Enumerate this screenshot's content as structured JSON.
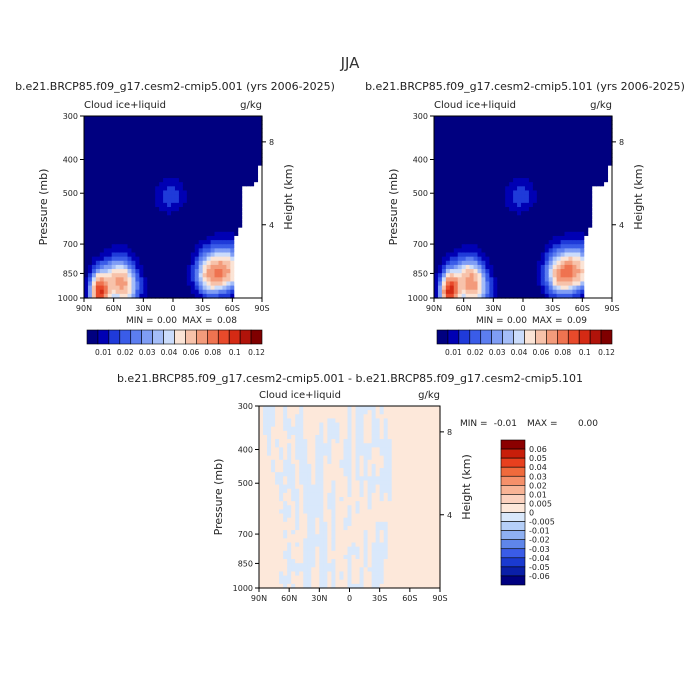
{
  "figure_title": "JJA",
  "colorbar_top": {
    "labels": [
      "0.01",
      "0.02",
      "0.03",
      "0.04",
      "0.06",
      "0.08",
      "0.1",
      "0.12"
    ],
    "colors": [
      "#000080",
      "#0000b3",
      "#1f3ad9",
      "#3a5ce8",
      "#5c7ef0",
      "#7f9df5",
      "#a4bdf8",
      "#cbdcfb",
      "#fbe4d6",
      "#f7c2aa",
      "#f39b7b",
      "#ef7350",
      "#e84a2b",
      "#d42a14",
      "#b0130a",
      "#7f0000"
    ]
  },
  "colorbar_diff": {
    "labels": [
      "0.06",
      "0.05",
      "0.04",
      "0.03",
      "0.02",
      "0.01",
      "0.005",
      "0",
      "-0.005",
      "-0.01",
      "-0.02",
      "-0.03",
      "-0.04",
      "-0.05",
      "-0.06"
    ],
    "colors": [
      "#8b0000",
      "#c81e0a",
      "#e8401e",
      "#f06a3c",
      "#f5906a",
      "#f8b496",
      "#fbd2bf",
      "#fde8da",
      "#d9e8fb",
      "#b5cff8",
      "#8eb0f2",
      "#5f86ea",
      "#3a5ce8",
      "#1a3ad0",
      "#0a1fa8",
      "#000080"
    ]
  },
  "chart_data": [
    {
      "type": "heatmap",
      "title": "b.e21.BRCP85.f09_g17.cesm2-cmip5.001 (yrs 2006-2025)",
      "left_label": "Cloud ice+liquid",
      "right_label": "g/kg",
      "xlabel": "",
      "ylabel": "Pressure (mb)",
      "y2label": "Height (km)",
      "x_ticks": [
        "90N",
        "60N",
        "30N",
        "0",
        "30S",
        "60S",
        "90S"
      ],
      "y_ticks": [
        "300",
        "400",
        "500",
        "700",
        "850",
        "1000"
      ],
      "y2_ticks": [
        "8",
        "4"
      ],
      "min_text": "MIN =",
      "min_value": "0.00",
      "max_text": "MAX =",
      "max_value": "0.08",
      "blobs": [
        {
          "lat": 74,
          "p": 960,
          "val": 0.085
        },
        {
          "lat": 55,
          "p": 880,
          "val": 0.045
        },
        {
          "lat": 48,
          "p": 950,
          "val": 0.03
        },
        {
          "lat": -38,
          "p": 855,
          "val": 0.055
        },
        {
          "lat": -55,
          "p": 830,
          "val": 0.05
        },
        {
          "lat": 3,
          "p": 510,
          "val": 0.012
        }
      ]
    },
    {
      "type": "heatmap",
      "title": "b.e21.BRCP85.f09_g17.cesm2-cmip5.101 (yrs 2006-2025)",
      "left_label": "Cloud ice+liquid",
      "right_label": "g/kg",
      "xlabel": "",
      "ylabel": "Pressure (mb)",
      "y2label": "Height (km)",
      "x_ticks": [
        "90N",
        "60N",
        "30N",
        "0",
        "30S",
        "60S",
        "90S"
      ],
      "y_ticks": [
        "300",
        "400",
        "500",
        "700",
        "850",
        "1000"
      ],
      "y2_ticks": [
        "8",
        "4"
      ],
      "min_text": "MIN =",
      "min_value": "0.00",
      "max_text": "MAX =",
      "max_value": "0.09",
      "blobs": [
        {
          "lat": 74,
          "p": 960,
          "val": 0.09
        },
        {
          "lat": 55,
          "p": 880,
          "val": 0.048
        },
        {
          "lat": 48,
          "p": 950,
          "val": 0.03
        },
        {
          "lat": -38,
          "p": 855,
          "val": 0.058
        },
        {
          "lat": -55,
          "p": 830,
          "val": 0.05
        },
        {
          "lat": 3,
          "p": 510,
          "val": 0.012
        }
      ]
    },
    {
      "type": "heatmap",
      "title": "b.e21.BRCP85.f09_g17.cesm2-cmip5.001 - b.e21.BRCP85.f09_g17.cesm2-cmip5.101",
      "left_label": "Cloud ice+liquid",
      "right_label": "g/kg",
      "xlabel": "",
      "ylabel": "Pressure (mb)",
      "y2label": "Height (km)",
      "x_ticks": [
        "90N",
        "60N",
        "30N",
        "0",
        "30S",
        "60S",
        "90S"
      ],
      "y_ticks": [
        "300",
        "400",
        "500",
        "700",
        "850",
        "1000"
      ],
      "y2_ticks": [
        "8",
        "4"
      ],
      "min_text": "MIN =",
      "min_value": "-0.01",
      "max_text": "MAX =",
      "max_value": "0.00",
      "value_range": [
        -0.01,
        0.0
      ]
    }
  ]
}
